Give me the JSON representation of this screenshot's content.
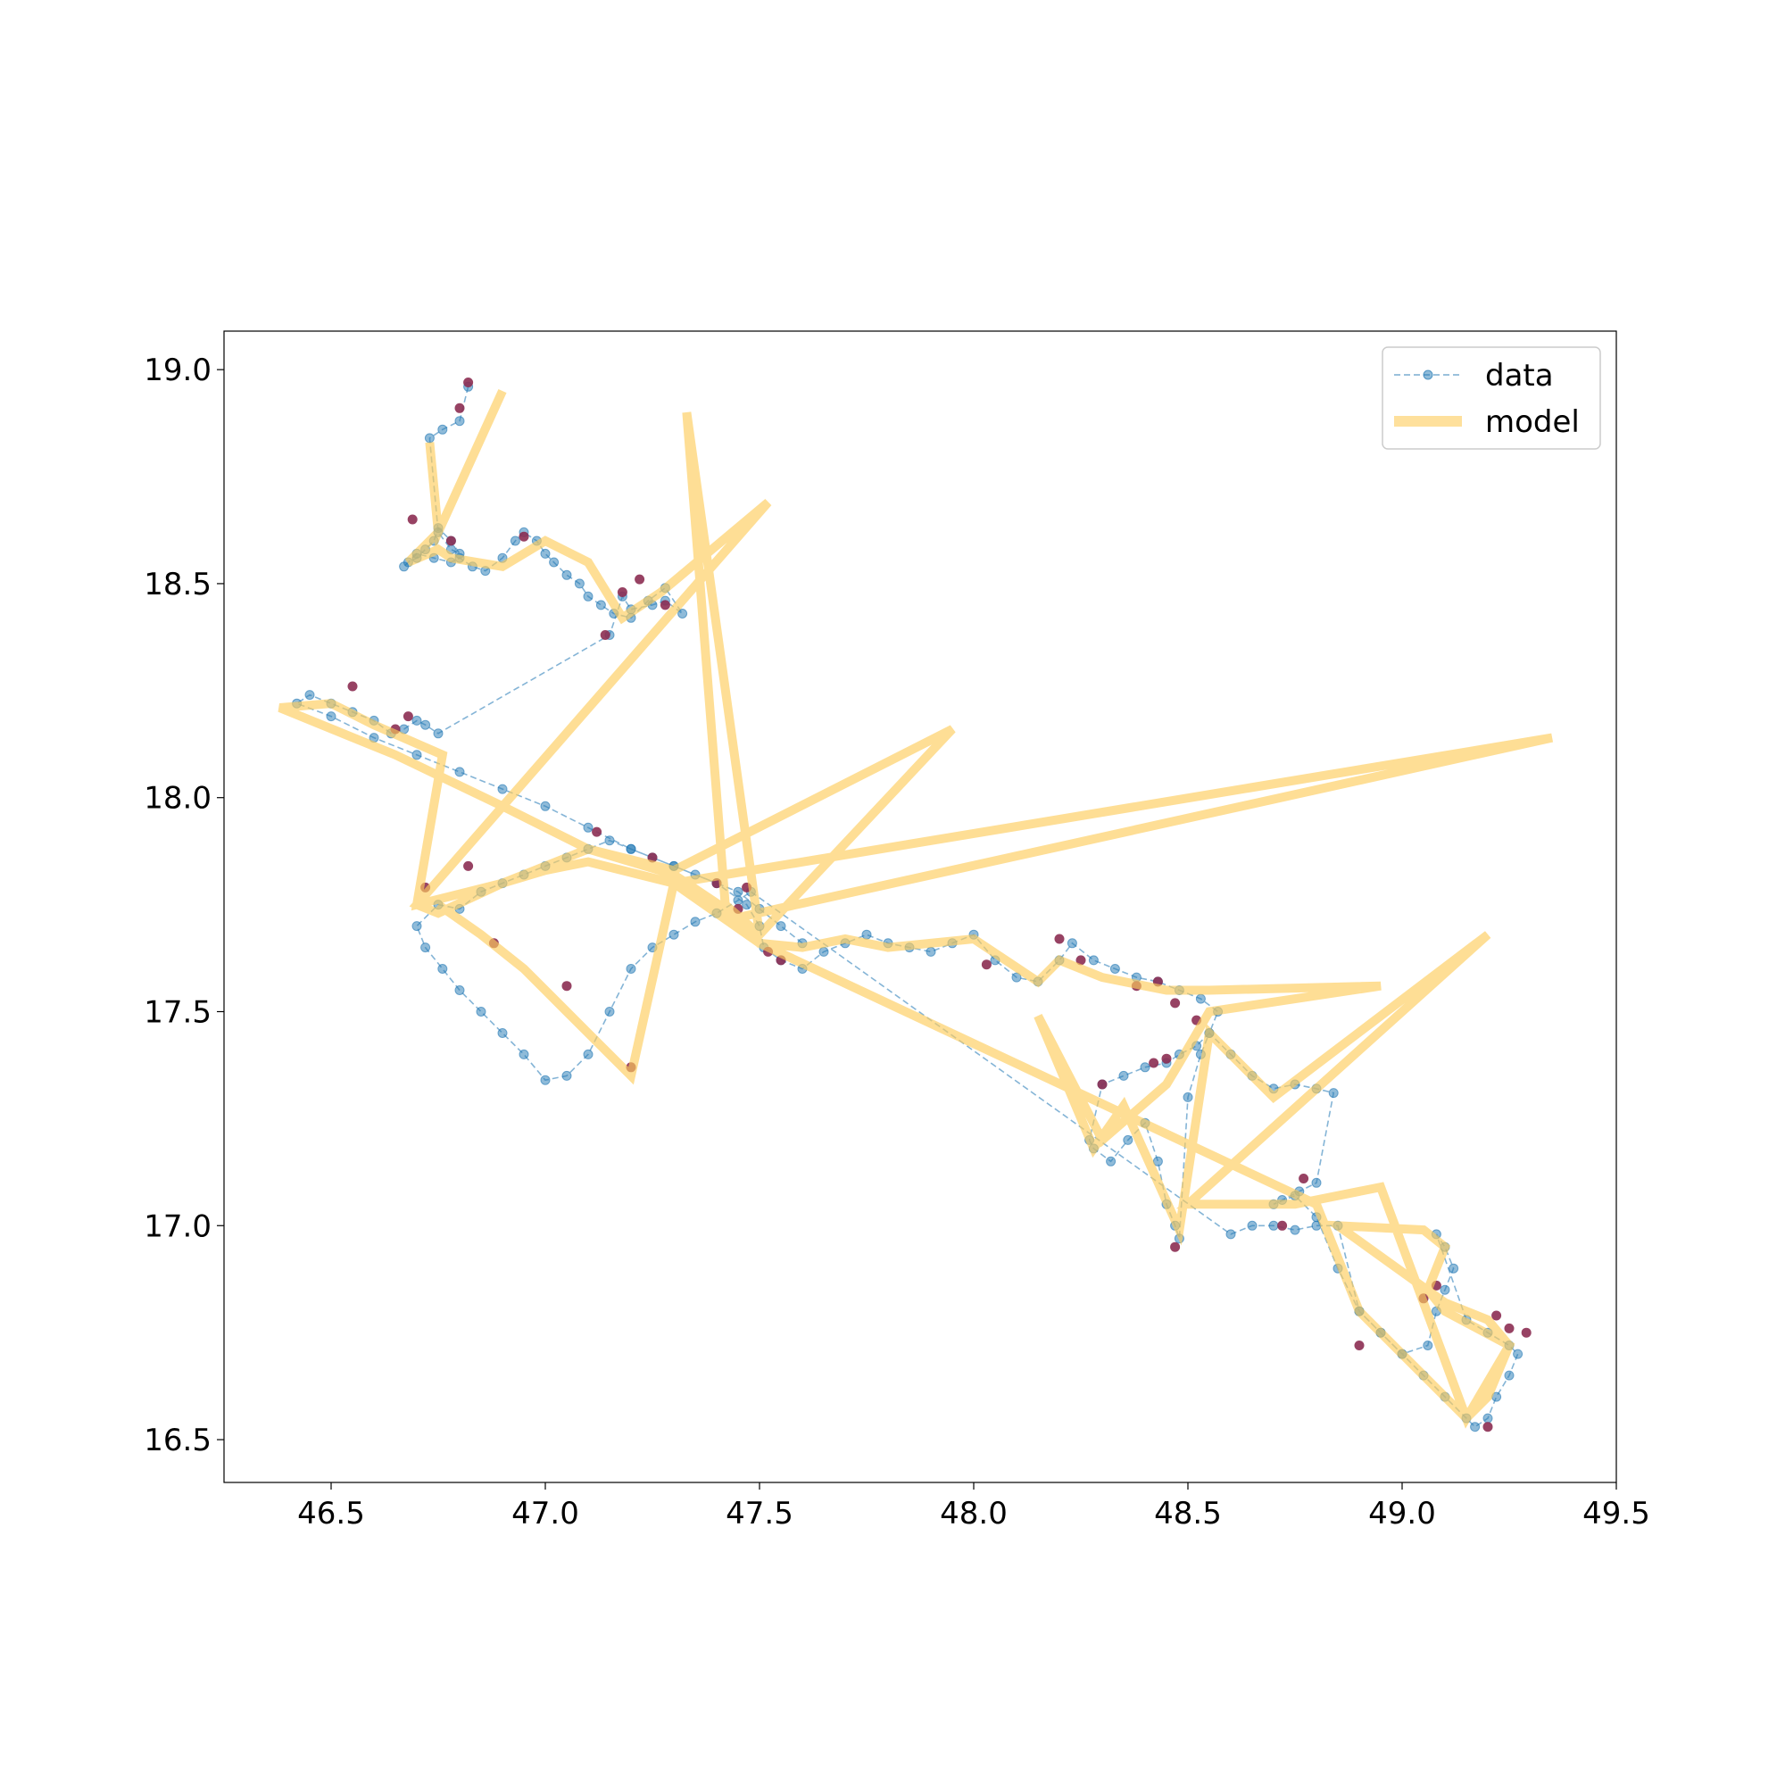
{
  "chart_data": {
    "type": "line",
    "title": "",
    "xlabel": "",
    "ylabel": "",
    "xlim": [
      46.25,
      49.5
    ],
    "ylim": [
      16.4,
      19.09
    ],
    "xticks": [
      46.5,
      47.0,
      47.5,
      48.0,
      48.5,
      49.0,
      49.5
    ],
    "yticks": [
      16.5,
      17.0,
      17.5,
      18.0,
      18.5,
      19.0
    ],
    "xtick_labels": [
      "46.5",
      "47.0",
      "47.5",
      "48.0",
      "48.5",
      "49.0",
      "49.5"
    ],
    "ytick_labels": [
      "16.5",
      "17.0",
      "17.5",
      "18.0",
      "18.5",
      "19.0"
    ],
    "grid": false,
    "legend": {
      "position": "top-right",
      "entries": [
        {
          "name": "data",
          "style": "dashed line with circle markers",
          "color": "#1f77b4"
        },
        {
          "name": "model",
          "style": "thick solid line",
          "color": "#fecc5c"
        }
      ]
    },
    "series": [
      {
        "name": "data",
        "style": "dashed-marker",
        "color": "#1f77b4",
        "x": [
          46.82,
          46.8,
          46.76,
          46.73,
          46.75,
          46.78,
          46.8,
          46.78,
          46.75,
          46.74,
          46.72,
          46.7,
          46.68,
          46.67,
          46.7,
          46.74,
          46.78,
          46.8,
          46.83,
          46.86,
          46.9,
          46.93,
          46.95,
          46.98,
          47.0,
          47.02,
          47.05,
          47.08,
          47.1,
          47.13,
          47.16,
          47.2,
          47.24,
          47.28,
          47.32,
          47.28,
          47.25,
          47.2,
          47.18,
          47.15,
          46.75,
          46.72,
          46.7,
          46.67,
          46.64,
          46.6,
          46.55,
          46.5,
          46.45,
          46.42,
          46.5,
          46.6,
          46.7,
          46.8,
          46.9,
          47.0,
          47.1,
          47.2,
          47.3,
          47.4,
          47.47,
          47.5,
          47.51,
          47.55,
          47.6,
          47.65,
          47.7,
          47.75,
          47.8,
          47.85,
          47.9,
          47.95,
          48.0,
          48.05,
          48.1,
          48.15,
          48.2,
          48.23,
          48.28,
          48.33,
          48.38,
          48.43,
          48.48,
          48.53,
          48.57,
          48.55,
          48.52,
          48.48,
          48.45,
          48.4,
          48.35,
          48.3,
          48.27,
          48.28,
          48.32,
          48.36,
          48.4,
          48.43,
          48.45,
          48.47,
          48.48,
          48.5,
          48.53,
          48.55,
          48.6,
          48.65,
          48.7,
          48.75,
          48.8,
          48.84,
          48.8,
          48.76,
          48.72,
          48.7,
          48.75,
          48.8,
          48.85,
          48.9,
          48.95,
          49.0,
          49.06,
          49.08,
          49.1,
          49.12,
          49.1,
          49.08,
          49.15,
          49.2,
          49.25,
          49.27,
          49.25,
          49.22,
          49.2,
          49.17,
          49.15,
          49.1,
          49.05,
          49.0,
          48.95,
          48.9,
          48.85,
          48.8,
          48.75,
          48.7,
          48.65,
          48.6,
          47.48,
          47.45,
          47.4,
          47.35,
          47.3,
          47.25,
          47.2,
          47.15,
          47.1,
          47.05,
          47.0,
          46.95,
          46.9,
          46.85,
          46.8,
          46.76,
          46.72,
          46.7,
          46.75,
          46.8,
          46.85,
          46.9,
          46.95,
          47.0,
          47.05,
          47.1,
          47.15,
          47.2,
          47.25,
          47.3,
          47.35,
          47.4,
          47.45,
          47.5,
          47.55,
          47.6
        ],
        "y": [
          18.96,
          18.88,
          18.86,
          18.84,
          18.62,
          18.58,
          18.57,
          18.6,
          18.63,
          18.6,
          18.58,
          18.56,
          18.55,
          18.54,
          18.57,
          18.56,
          18.55,
          18.56,
          18.54,
          18.53,
          18.56,
          18.6,
          18.62,
          18.6,
          18.57,
          18.55,
          18.52,
          18.5,
          18.47,
          18.45,
          18.43,
          18.42,
          18.46,
          18.49,
          18.43,
          18.46,
          18.45,
          18.44,
          18.47,
          18.38,
          18.15,
          18.17,
          18.18,
          18.16,
          18.15,
          18.18,
          18.2,
          18.22,
          18.24,
          18.22,
          18.19,
          18.14,
          18.1,
          18.06,
          18.02,
          17.98,
          17.93,
          17.88,
          17.84,
          17.8,
          17.75,
          17.7,
          17.65,
          17.62,
          17.6,
          17.64,
          17.66,
          17.68,
          17.66,
          17.65,
          17.64,
          17.66,
          17.68,
          17.62,
          17.58,
          17.57,
          17.62,
          17.66,
          17.62,
          17.6,
          17.58,
          17.57,
          17.55,
          17.53,
          17.5,
          17.45,
          17.42,
          17.4,
          17.38,
          17.37,
          17.35,
          17.33,
          17.2,
          17.18,
          17.15,
          17.2,
          17.24,
          17.15,
          17.05,
          17.0,
          16.97,
          17.3,
          17.4,
          17.45,
          17.4,
          17.35,
          17.32,
          17.33,
          17.32,
          17.31,
          17.1,
          17.08,
          17.06,
          17.05,
          17.07,
          17.02,
          16.9,
          16.8,
          16.75,
          16.7,
          16.72,
          16.8,
          16.85,
          16.9,
          16.95,
          16.98,
          16.78,
          16.75,
          16.72,
          16.7,
          16.65,
          16.6,
          16.55,
          16.53,
          16.55,
          16.6,
          16.65,
          16.7,
          16.75,
          16.8,
          17.0,
          17.0,
          16.99,
          17.0,
          17.0,
          16.98,
          17.78,
          17.76,
          17.73,
          17.71,
          17.68,
          17.65,
          17.6,
          17.5,
          17.4,
          17.35,
          17.34,
          17.4,
          17.45,
          17.5,
          17.55,
          17.6,
          17.65,
          17.7,
          17.75,
          17.74,
          17.78,
          17.8,
          17.82,
          17.84,
          17.86,
          17.88,
          17.9,
          17.88,
          17.86,
          17.84,
          17.82,
          17.8,
          17.78,
          17.74,
          17.7,
          17.66
        ]
      },
      {
        "name": "model",
        "style": "thick",
        "color": "#fecc5c",
        "x": [
          46.73,
          46.75,
          46.9,
          46.75,
          46.68,
          46.75,
          46.78,
          46.9,
          47.0,
          47.1,
          47.18,
          47.27,
          47.52,
          46.7,
          46.75,
          46.9,
          47.1,
          47.3,
          47.95,
          47.5,
          47.33,
          47.42,
          47.5,
          47.45,
          47.3,
          47.1,
          46.9,
          46.65,
          46.38,
          46.5,
          46.6,
          46.76,
          46.7,
          46.9,
          47.0,
          47.1,
          47.3,
          49.35,
          47.45,
          47.5,
          47.6,
          47.7,
          47.8,
          48.0,
          48.15,
          48.2,
          48.3,
          48.45,
          48.55,
          48.95,
          48.55,
          48.48,
          48.45,
          48.3,
          48.15,
          48.28,
          48.35,
          48.48,
          48.55,
          48.7,
          49.2,
          48.5,
          48.75,
          48.95,
          49.15,
          49.25,
          49.2,
          49.1,
          48.85,
          49.05,
          49.1,
          49.06,
          49.1,
          49.25,
          49.2,
          49.15,
          48.9,
          48.8,
          47.5,
          47.3,
          47.2,
          47.1,
          46.95,
          46.85,
          46.75
        ],
        "y": [
          18.83,
          18.62,
          18.95,
          18.62,
          18.55,
          18.58,
          18.56,
          18.54,
          18.6,
          18.55,
          18.42,
          18.48,
          18.69,
          17.75,
          17.73,
          17.8,
          17.88,
          17.83,
          18.16,
          17.68,
          18.9,
          17.75,
          17.68,
          17.72,
          17.82,
          17.88,
          17.98,
          18.1,
          18.21,
          18.22,
          18.17,
          18.1,
          17.75,
          17.8,
          17.83,
          17.85,
          17.8,
          18.14,
          17.72,
          17.66,
          17.65,
          17.67,
          17.65,
          17.67,
          17.57,
          17.62,
          17.58,
          17.55,
          17.55,
          17.56,
          17.5,
          17.38,
          17.33,
          17.2,
          17.49,
          17.18,
          17.28,
          16.99,
          17.45,
          17.3,
          17.68,
          17.05,
          17.05,
          17.09,
          16.55,
          16.72,
          16.78,
          16.82,
          17.0,
          16.99,
          16.95,
          16.85,
          16.8,
          16.72,
          16.6,
          16.55,
          16.8,
          17.05,
          17.66,
          17.8,
          17.35,
          17.45,
          17.6,
          17.68,
          17.75
        ]
      },
      {
        "name": "",
        "style": "markers",
        "color": "#8c2d52",
        "x": [
          46.82,
          46.8,
          46.69,
          46.78,
          46.95,
          47.14,
          47.18,
          47.22,
          47.28,
          46.55,
          46.65,
          46.68,
          46.72,
          46.88,
          46.82,
          47.12,
          47.25,
          47.4,
          47.47,
          47.45,
          47.52,
          47.55,
          48.03,
          48.2,
          48.25,
          48.38,
          48.43,
          48.47,
          48.52,
          48.3,
          48.42,
          48.45,
          48.47,
          48.72,
          48.77,
          48.9,
          49.05,
          49.08,
          49.22,
          49.25,
          49.29,
          49.2,
          47.05,
          47.2
        ],
        "y": [
          18.97,
          18.91,
          18.65,
          18.6,
          18.61,
          18.38,
          18.48,
          18.51,
          18.45,
          18.26,
          18.16,
          18.19,
          17.79,
          17.66,
          17.84,
          17.92,
          17.86,
          17.8,
          17.79,
          17.74,
          17.64,
          17.62,
          17.61,
          17.67,
          17.62,
          17.56,
          17.57,
          17.52,
          17.48,
          17.33,
          17.38,
          17.39,
          16.95,
          17.0,
          17.11,
          16.72,
          16.83,
          16.86,
          16.79,
          16.76,
          16.75,
          16.53,
          17.56,
          17.37
        ]
      }
    ]
  }
}
